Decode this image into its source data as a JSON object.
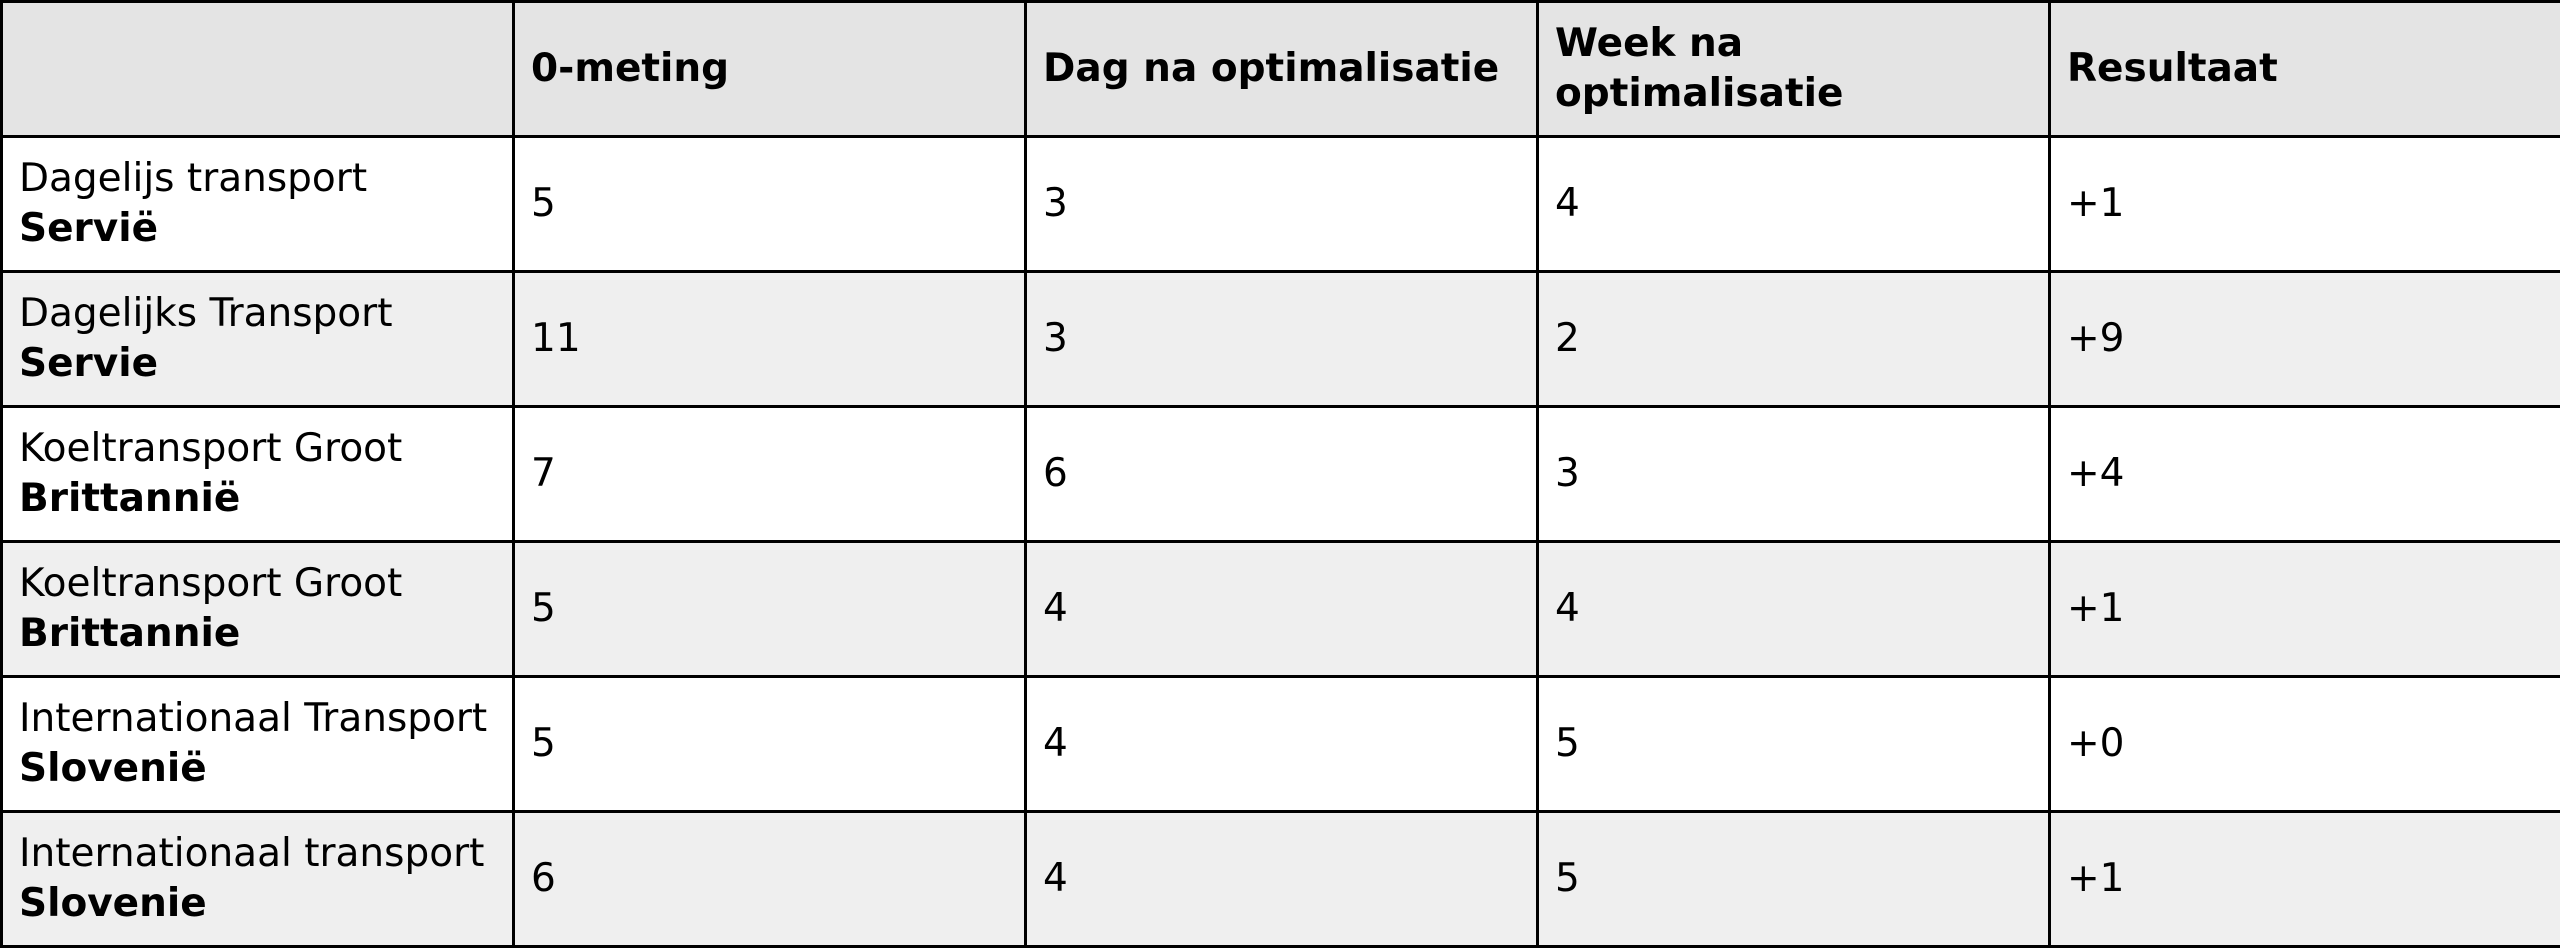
{
  "table": {
    "headers": [
      "",
      "0-meting",
      "Dag na optimalisatie",
      "Week na optimalisatie",
      "Resultaat"
    ],
    "rows": [
      {
        "label": "Dagelijs transport",
        "label_bold": "Servië",
        "values": [
          "5",
          "3",
          "4",
          "+1"
        ]
      },
      {
        "label": "Dagelijks Transport",
        "label_bold": "Servie",
        "values": [
          "11",
          "3",
          "2",
          "+9"
        ]
      },
      {
        "label": "Koeltransport Groot",
        "label_bold": "Brittannië",
        "values": [
          "7",
          "6",
          "3",
          "+4"
        ]
      },
      {
        "label": "Koeltransport Groot",
        "label_bold": "Brittannie",
        "values": [
          "5",
          "4",
          "4",
          "+1"
        ]
      },
      {
        "label": "Internationaal Transport",
        "label_bold": "Slovenië",
        "values": [
          "5",
          "4",
          "5",
          "+0"
        ]
      },
      {
        "label": "Internationaal transport",
        "label_bold": "Slovenie",
        "values": [
          "6",
          "4",
          "5",
          "+1"
        ]
      }
    ]
  }
}
